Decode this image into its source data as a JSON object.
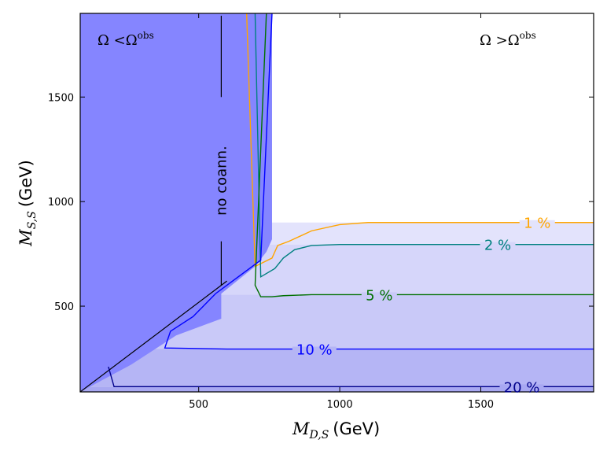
{
  "chart_data": {
    "type": "contour",
    "xlabel": {
      "var": "M",
      "sub": "D,S",
      "unit": "(GeV)"
    },
    "ylabel": {
      "var": "M",
      "sub": "S,S",
      "unit": "(GeV)"
    },
    "xlim": [
      80,
      1900
    ],
    "ylim": [
      90,
      1900
    ],
    "xticks": [
      500,
      1000,
      1500
    ],
    "yticks": [
      500,
      1000,
      1500
    ],
    "region_labels": {
      "left": {
        "text": "Ω <Ω",
        "sup": "obs"
      },
      "right": {
        "text": "Ω >Ω",
        "sup": "obs"
      }
    },
    "fills": [
      {
        "level": "20 %",
        "color": "#a8a8f2"
      },
      {
        "level": "10 %",
        "color": "#b5b5f5"
      },
      {
        "level": "5 %",
        "color": "#c9c9f8"
      },
      {
        "level": "2 %",
        "color": "#d6d6fa"
      },
      {
        "level": "1 %",
        "color": "#e3e3fc"
      }
    ],
    "underabundant_region": {
      "color": "#8585ff",
      "boundary_x": [
        580,
        700,
        740,
        760
      ]
    },
    "no_coann_line": {
      "label": "no coann.",
      "x": 580,
      "y_label": 1100
    },
    "series": [
      {
        "name": "1 %",
        "color": "#ffa500",
        "plateau_y": 900,
        "label_x": 1700,
        "x": [
          670,
          700,
          760,
          780,
          820,
          900,
          1000,
          1100,
          1300,
          1600,
          1900
        ],
        "y": [
          1900,
          690,
          730,
          790,
          810,
          860,
          890,
          900,
          900,
          900,
          900
        ]
      },
      {
        "name": "2 %",
        "color": "#008080",
        "plateau_y": 795,
        "label_x": 1560,
        "x": [
          700,
          720,
          770,
          800,
          840,
          900,
          1000,
          1100,
          1400,
          1900
        ],
        "y": [
          1900,
          640,
          680,
          730,
          770,
          790,
          795,
          795,
          795,
          795
        ]
      },
      {
        "name": "5 %",
        "color": "#007000",
        "plateau_y": 555,
        "label_x": 1140,
        "x": [
          740,
          700,
          720,
          760,
          800,
          900,
          1100,
          1500,
          1900
        ],
        "y": [
          1900,
          600,
          545,
          545,
          550,
          555,
          555,
          555,
          555
        ]
      },
      {
        "name": "10 %",
        "color": "#0000ff",
        "plateau_y": 295,
        "label_x": 910,
        "x": [
          760,
          720,
          560,
          480,
          400,
          380,
          600,
          1000,
          1500,
          1900
        ],
        "y": [
          1900,
          720,
          560,
          450,
          380,
          300,
          295,
          295,
          295,
          295
        ]
      },
      {
        "name": "20 %",
        "color": "#00008b",
        "plateau_y": 115,
        "label_x": 1645,
        "x": [
          180,
          200,
          500,
          1000,
          1500,
          1900
        ],
        "y": [
          210,
          115,
          115,
          115,
          115,
          115
        ]
      }
    ]
  }
}
